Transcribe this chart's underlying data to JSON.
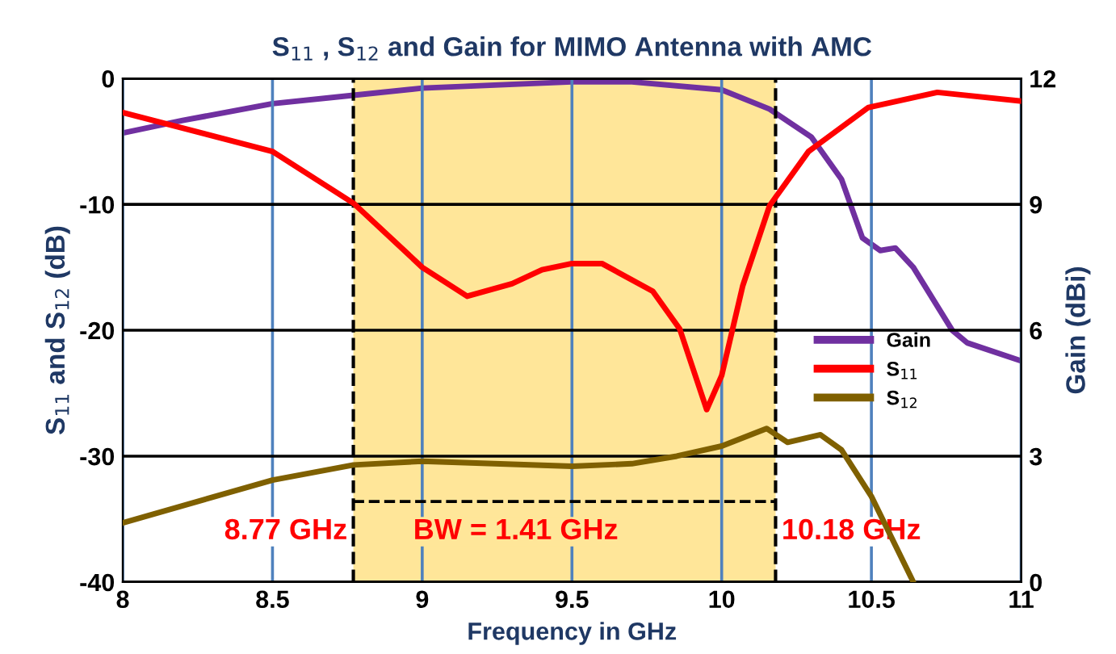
{
  "chart_data": {
    "type": "line",
    "title": "S$_{11}$ , S$_{12}$ and Gain for MIMO Antenna with AMC",
    "xlabel": "Frequency in GHz",
    "ylabel": "S$_{11}$ and S$_{12}$ (dB)",
    "y2label": "Gain (dBi)",
    "xlim": [
      8,
      11
    ],
    "xticks": [
      8,
      8.5,
      9,
      9.5,
      10,
      10.5,
      11
    ],
    "ylim": [
      -40,
      0
    ],
    "yticks": [
      -40,
      -30,
      -20,
      -10,
      0
    ],
    "y2lim": [
      0,
      12
    ],
    "y2ticks": [
      0,
      3,
      6,
      9,
      12
    ],
    "grid": true,
    "legend": "right",
    "marker": "none",
    "line_style": "solid",
    "series": [
      {
        "name": "Gain",
        "color": "#7030a0",
        "axis": "y2",
        "x": [
          8,
          8.2,
          8.5,
          8.77,
          9,
          9.5,
          9.7,
          10,
          10.16,
          10.3,
          10.4,
          10.47,
          10.53,
          10.58,
          10.64,
          10.77,
          10.82,
          11
        ],
        "values": [
          10.7,
          11.0,
          11.4,
          11.6,
          11.77,
          11.92,
          11.92,
          11.73,
          11.27,
          10.6,
          9.6,
          8.2,
          7.9,
          7.96,
          7.5,
          6.0,
          5.7,
          5.27
        ]
      },
      {
        "name": "S$_{11}$",
        "color": "#ff0000",
        "x": [
          8,
          8.5,
          8.77,
          9,
          9.15,
          9.3,
          9.4,
          9.5,
          9.6,
          9.77,
          9.86,
          9.95,
          10.0,
          10.07,
          10.16,
          10.29,
          10.49,
          10.72,
          11
        ],
        "values": [
          -2.7,
          -5.8,
          -9.9,
          -15,
          -17.3,
          -16.3,
          -15.2,
          -14.7,
          -14.7,
          -16.9,
          -19.9,
          -26.3,
          -23.6,
          -16.5,
          -10.1,
          -5.8,
          -2.3,
          -1.1,
          -1.8
        ]
      },
      {
        "name": "S$_{12}$",
        "color": "#7f6000",
        "x": [
          8,
          8.5,
          8.77,
          9,
          9.5,
          9.7,
          9.85,
          10.0,
          10.15,
          10.22,
          10.33,
          10.4,
          10.5,
          10.64
        ],
        "values": [
          -35.3,
          -31.9,
          -30.7,
          -30.4,
          -30.8,
          -30.6,
          -30.0,
          -29.2,
          -27.8,
          -28.9,
          -28.3,
          -29.5,
          -33.2,
          -40
        ]
      }
    ],
    "bands": [
      {
        "axis": "x",
        "from": 8.77,
        "to": 10.18,
        "color": "#ffe699"
      }
    ],
    "ref_lines": [
      {
        "axis": "x",
        "value": 8.77,
        "label": "8.77 GHz",
        "color": "#000000",
        "line_style": "dashed"
      },
      {
        "axis": "x",
        "value": 10.18,
        "label": "10.18 GHz",
        "color": "#000000",
        "line_style": "dashed"
      }
    ],
    "annotations": [
      "BW = 1.41 GHz"
    ]
  }
}
